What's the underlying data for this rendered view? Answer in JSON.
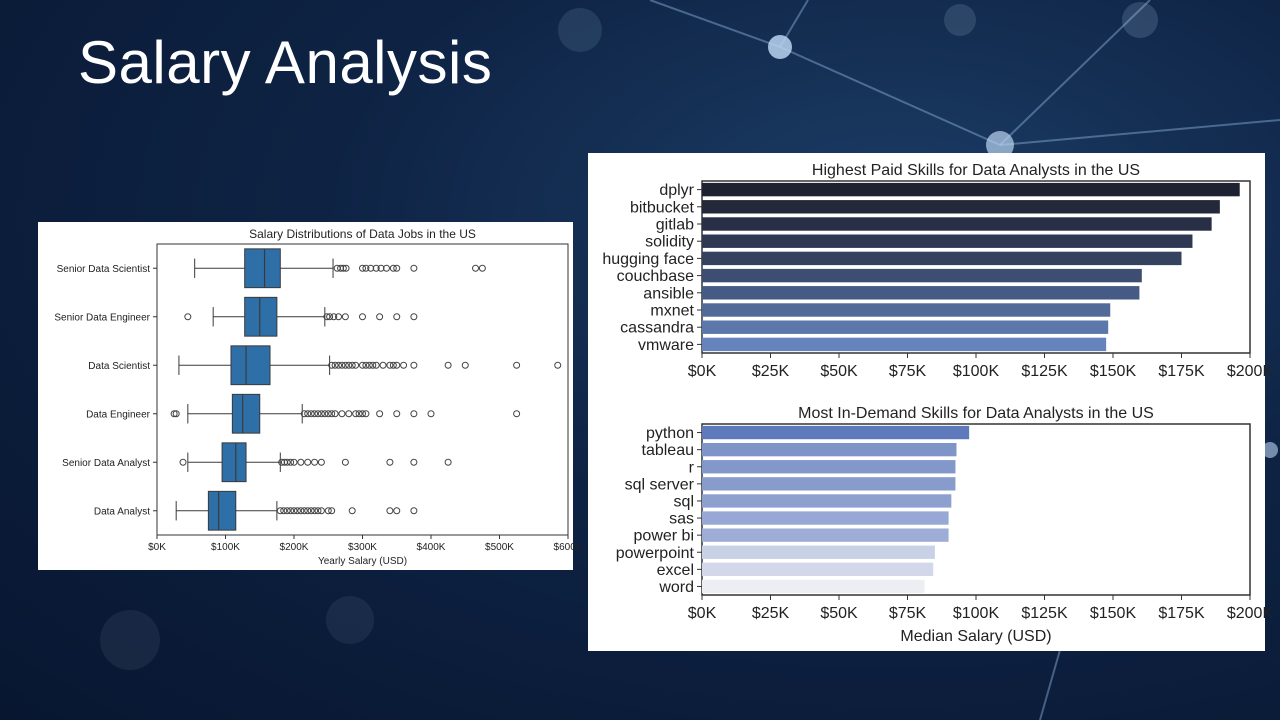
{
  "slide": {
    "title": "Salary Analysis"
  },
  "chart_data": [
    {
      "type": "boxplot",
      "title": "Salary Distributions of Data Jobs in the US",
      "xlabel": "Yearly Salary (USD)",
      "ylabel": "",
      "xlim": [
        0,
        600000
      ],
      "xticks": [
        0,
        100000,
        200000,
        300000,
        400000,
        500000,
        600000
      ],
      "xtick_labels": [
        "$0K",
        "$100K",
        "$200K",
        "$300K",
        "$400K",
        "$500K",
        "$600K"
      ],
      "color": "#2f6fa8",
      "series": [
        {
          "name": "Senior Data Scientist",
          "whisker_low": 55000,
          "q1": 128000,
          "median": 157000,
          "q3": 180000,
          "whisker_high": 257000,
          "outliers": [
            263000,
            268000,
            272000,
            276000,
            300000,
            305000,
            312000,
            320000,
            327000,
            335000,
            345000,
            350000,
            375000,
            465000,
            475000
          ]
        },
        {
          "name": "Senior Data Engineer",
          "whisker_low": 82000,
          "q1": 128000,
          "median": 150000,
          "q3": 175000,
          "whisker_high": 245000,
          "outliers": [
            45000,
            248000,
            252000,
            258000,
            265000,
            275000,
            300000,
            325000,
            350000,
            375000
          ]
        },
        {
          "name": "Data Scientist",
          "whisker_low": 32000,
          "q1": 108000,
          "median": 130000,
          "q3": 165000,
          "whisker_high": 252000,
          "outliers": [
            255000,
            260000,
            265000,
            270000,
            275000,
            280000,
            285000,
            290000,
            300000,
            305000,
            310000,
            315000,
            320000,
            330000,
            340000,
            345000,
            350000,
            360000,
            375000,
            425000,
            450000,
            525000,
            585000
          ]
        },
        {
          "name": "Data Engineer",
          "whisker_low": 45000,
          "q1": 110000,
          "median": 125000,
          "q3": 150000,
          "whisker_high": 212000,
          "outliers": [
            25000,
            28000,
            215000,
            220000,
            225000,
            230000,
            235000,
            240000,
            245000,
            250000,
            255000,
            260000,
            270000,
            280000,
            290000,
            295000,
            300000,
            305000,
            325000,
            350000,
            375000,
            400000,
            525000
          ]
        },
        {
          "name": "Senior Data Analyst",
          "whisker_low": 45000,
          "q1": 95000,
          "median": 115000,
          "q3": 130000,
          "whisker_high": 180000,
          "outliers": [
            38000,
            182000,
            186000,
            190000,
            195000,
            200000,
            210000,
            220000,
            230000,
            240000,
            275000,
            340000,
            375000,
            425000
          ]
        },
        {
          "name": "Data Analyst",
          "whisker_low": 28000,
          "q1": 75000,
          "median": 90000,
          "q3": 115000,
          "whisker_high": 175000,
          "outliers": [
            180000,
            185000,
            190000,
            195000,
            200000,
            205000,
            210000,
            215000,
            220000,
            225000,
            230000,
            235000,
            240000,
            250000,
            255000,
            285000,
            340000,
            350000,
            375000
          ]
        }
      ]
    },
    {
      "type": "bar",
      "orientation": "horizontal",
      "title": "Highest Paid Skills for Data Analysts in the US",
      "xlabel": "",
      "ylabel": "",
      "xlim": [
        0,
        200000
      ],
      "xticks": [
        0,
        25000,
        50000,
        75000,
        100000,
        125000,
        150000,
        175000,
        200000
      ],
      "xtick_labels": [
        "$0K",
        "$25K",
        "$50K",
        "$75K",
        "$100K",
        "$125K",
        "$150K",
        "$175K",
        "$200K"
      ],
      "categories": [
        "dplyr",
        "bitbucket",
        "gitlab",
        "solidity",
        "hugging face",
        "couchbase",
        "ansible",
        "mxnet",
        "cassandra",
        "vmware"
      ],
      "values": [
        196250,
        189000,
        186000,
        179000,
        175000,
        160515,
        159640,
        149000,
        148250,
        147500
      ],
      "colors": [
        "#1e2130",
        "#23283a",
        "#272e45",
        "#2e3852",
        "#35425f",
        "#3e4e72",
        "#455a84",
        "#516a98",
        "#5c78aa",
        "#6584bd"
      ]
    },
    {
      "type": "bar",
      "orientation": "horizontal",
      "title": "Most In-Demand Skills for Data Analysts in the US",
      "xlabel": "Median Salary (USD)",
      "ylabel": "",
      "xlim": [
        0,
        200000
      ],
      "xticks": [
        0,
        25000,
        50000,
        75000,
        100000,
        125000,
        150000,
        175000,
        200000
      ],
      "xtick_labels": [
        "$0K",
        "$25K",
        "$50K",
        "$75K",
        "$100K",
        "$125K",
        "$150K",
        "$175K",
        "$200K"
      ],
      "categories": [
        "python",
        "tableau",
        "r",
        "sql server",
        "sql",
        "sas",
        "power bi",
        "powerpoint",
        "excel",
        "word"
      ],
      "values": [
        97500,
        92875,
        92500,
        92500,
        91000,
        90000,
        90000,
        85000,
        84392,
        81194
      ],
      "colors": [
        "#5f79bd",
        "#7f94c7",
        "#8398ca",
        "#879ccc",
        "#8da0cf",
        "#96a8d3",
        "#9dadd6",
        "#c9d1e6",
        "#d2d8ea",
        "#eceef3"
      ]
    }
  ]
}
